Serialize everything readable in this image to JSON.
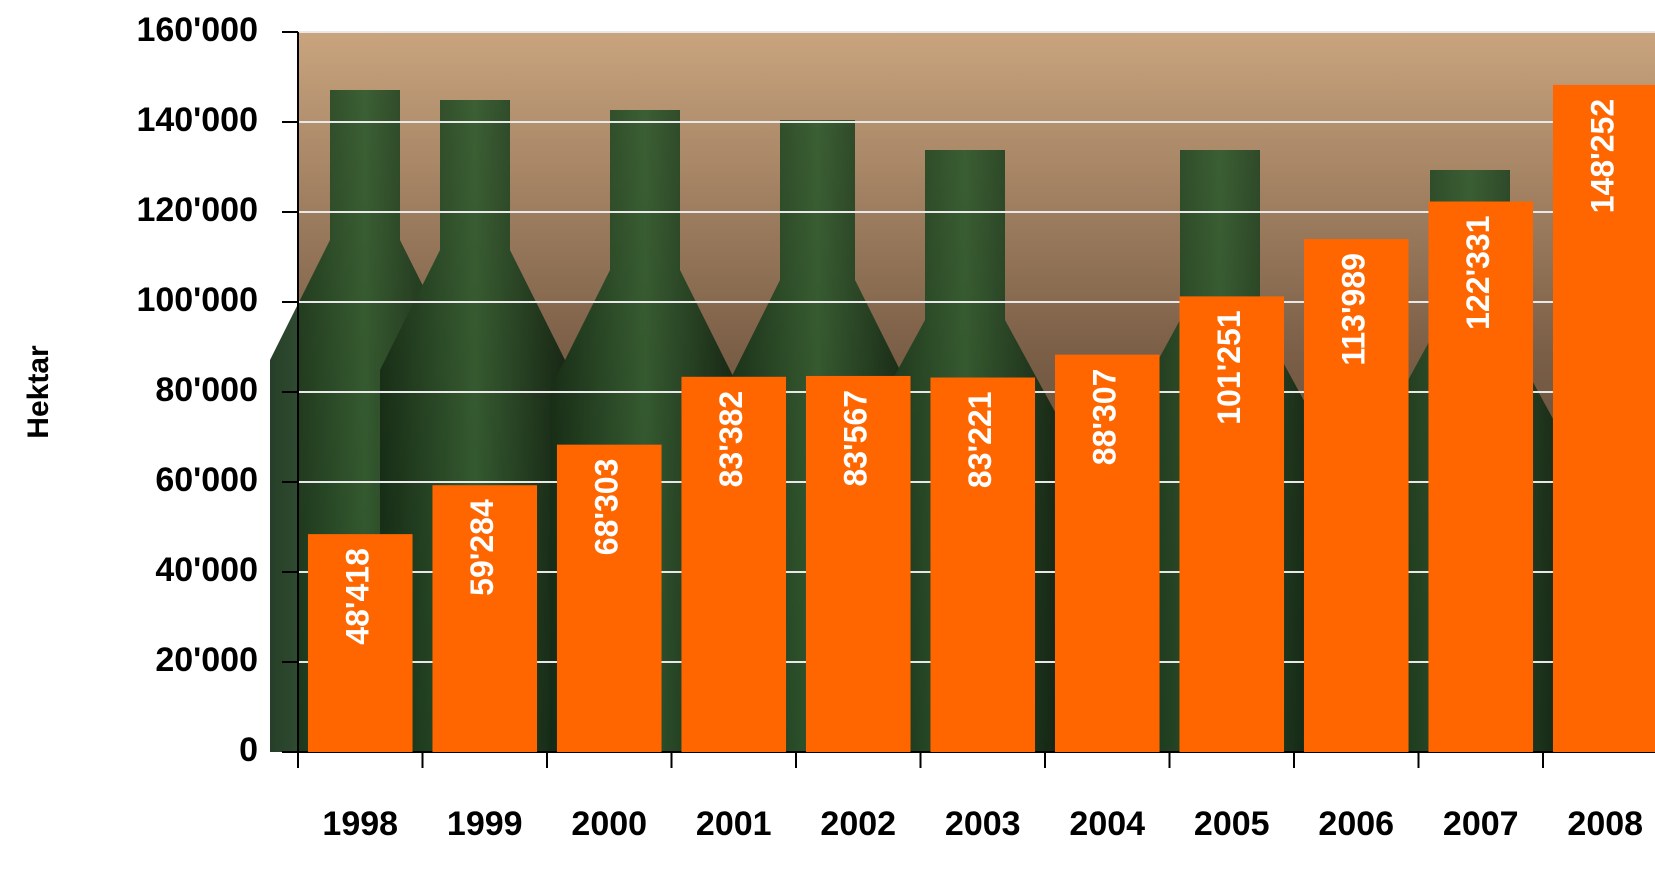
{
  "chart_data": {
    "type": "bar",
    "y_label": "Hektar",
    "categories": [
      "1998",
      "1999",
      "2000",
      "2001",
      "2002",
      "2003",
      "2004",
      "2005",
      "2006",
      "2007",
      "2008"
    ],
    "values": [
      48418,
      59284,
      68303,
      83382,
      83567,
      83221,
      88307,
      101251,
      113989,
      122331,
      148252
    ],
    "value_labels": [
      "48'418",
      "59'284",
      "68'303",
      "83'382",
      "83'567",
      "83'221",
      "88'307",
      "101'251",
      "113'989",
      "122'331",
      "148'252"
    ],
    "color": "#ff6600",
    "ylim": [
      0,
      160000
    ],
    "yticks": [
      0,
      {
        "value": 20000,
        "label": "20'000"
      },
      {
        "value": 40000,
        "label": "40'000"
      },
      {
        "value": 60000,
        "label": "60'000"
      },
      {
        "value": 80000,
        "label": "80'000"
      },
      {
        "value": 100000,
        "label": "100'000"
      },
      {
        "value": 120000,
        "label": "120'000"
      },
      {
        "value": 140000,
        "label": "140'000"
      },
      {
        "value": 160000,
        "label": "160'000"
      }
    ],
    "grid": true
  }
}
